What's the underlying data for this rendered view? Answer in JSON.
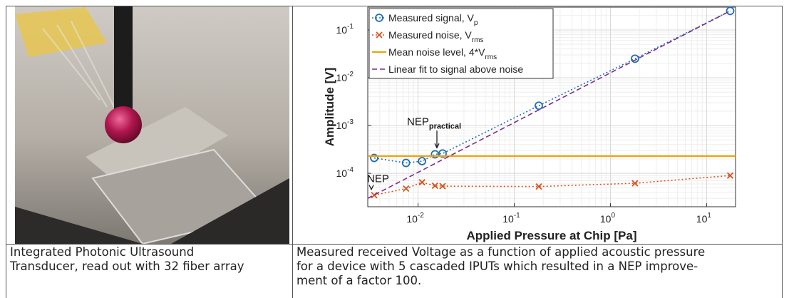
{
  "table": {
    "captions": [
      {
        "lines": [
          "Integrated Photonic Ultrasound",
          "Transducer, read out with 32 fiber array"
        ]
      },
      {
        "lines": [
          "Measured received Voltage as a function of applied acoustic pressure",
          "for a device with 5 cascaded IPUTs which resulted in a NEP improve-",
          "ment of a factor 100."
        ]
      }
    ]
  },
  "chart_data": {
    "type": "line",
    "log_x": true,
    "log_y": true,
    "grid": true,
    "legend": "upper left",
    "x_label": "Applied Pressure at Chip [Pa]",
    "y_label": "Amplitude [V]",
    "xlim": [
      0.003,
      20
    ],
    "ylim": [
      2e-05,
      0.3
    ],
    "xticks": [
      {
        "value": 0.01,
        "label": "10",
        "exponent": "-2"
      },
      {
        "value": 0.1,
        "label": "10",
        "exponent": "-1"
      },
      {
        "value": 1,
        "label": "10",
        "exponent": "0"
      },
      {
        "value": 10,
        "label": "10",
        "exponent": "1"
      }
    ],
    "yticks": [
      {
        "value": 0.0001,
        "label": "10",
        "exponent": "-4"
      },
      {
        "value": 0.001,
        "label": "10",
        "exponent": "-3"
      },
      {
        "value": 0.01,
        "label": "10",
        "exponent": "-2"
      },
      {
        "value": 0.1,
        "label": "10",
        "exponent": "-1"
      }
    ],
    "series": [
      {
        "name": "Measured signal, V",
        "name_sub": "p",
        "color": "#1f6fb4",
        "marker": "o",
        "linestyle": "dotted",
        "x": [
          0.0035,
          0.0075,
          0.011,
          0.015,
          0.018,
          0.18,
          1.8,
          17.6
        ],
        "values": [
          0.00021,
          0.000165,
          0.00018,
          0.00025,
          0.00026,
          0.0026,
          0.025,
          0.25
        ]
      },
      {
        "name": "Measured noise, V",
        "name_sub": "rms",
        "color": "#d9531e",
        "marker": "x",
        "linestyle": "dotted",
        "x": [
          0.0035,
          0.0075,
          0.011,
          0.015,
          0.018,
          0.18,
          1.8,
          17.6
        ],
        "values": [
          3.5e-05,
          4.8e-05,
          6.5e-05,
          5.5e-05,
          5.4e-05,
          5.3e-05,
          6.2e-05,
          9e-05
        ]
      },
      {
        "name": "Mean noise level, 4*V",
        "name_sub": "rms",
        "color": "#f0a30a",
        "marker": "none",
        "linestyle": "solid",
        "x": [
          0.003,
          20
        ],
        "values": [
          0.00023,
          0.00023
        ]
      },
      {
        "name": "Linear fit to signal above noise",
        "color": "#7e2f8e",
        "marker": "none",
        "linestyle": "dashed",
        "x": [
          0.003,
          17.6
        ],
        "values": [
          3e-05,
          0.25
        ]
      }
    ],
    "annotations": [
      {
        "text": "NEP",
        "x": 0.0035,
        "y": 3.5e-05
      },
      {
        "text": "NEP",
        "sub": "practical",
        "x": 0.018,
        "y": 0.00026
      }
    ]
  }
}
